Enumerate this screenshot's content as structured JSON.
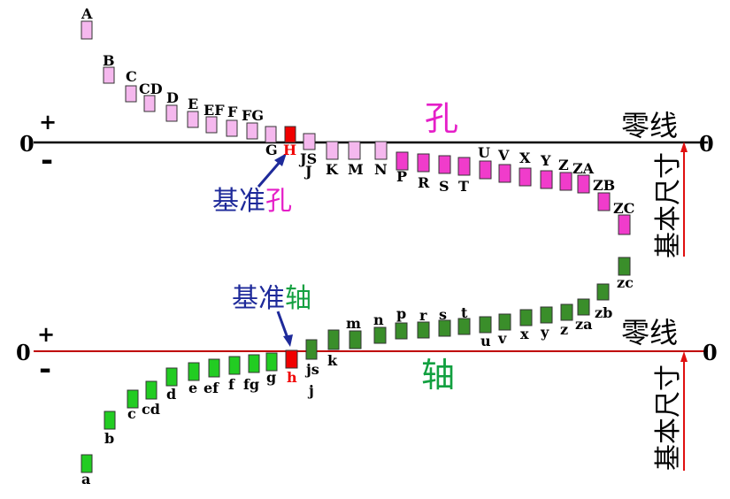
{
  "hole_section": {
    "zero_left": "0",
    "zero_right": "0",
    "plus": "+",
    "minus": "-",
    "title": "孔",
    "zero_line_label": "零线",
    "basic_size_label": "基本尺寸",
    "reference_label_prefix": "基准",
    "reference_label_suffix": "孔",
    "boxes": [
      {
        "label": "A",
        "state": "upper"
      },
      {
        "label": "B",
        "state": "upper"
      },
      {
        "label": "C",
        "state": "upper"
      },
      {
        "label": "CD",
        "state": "upper"
      },
      {
        "label": "D",
        "state": "upper"
      },
      {
        "label": "E",
        "state": "upper"
      },
      {
        "label": "EF",
        "state": "upper"
      },
      {
        "label": "F",
        "state": "upper"
      },
      {
        "label": "FG",
        "state": "upper"
      },
      {
        "label": "G",
        "state": "upper"
      },
      {
        "label": "H",
        "state": "reference"
      },
      {
        "label": "JS",
        "state": "symmetric"
      },
      {
        "label": "J",
        "state": "straddle"
      },
      {
        "label": "K",
        "state": "straddle"
      },
      {
        "label": "M",
        "state": "straddle"
      },
      {
        "label": "N",
        "state": "straddle"
      },
      {
        "label": "P",
        "state": "lower"
      },
      {
        "label": "R",
        "state": "lower"
      },
      {
        "label": "S",
        "state": "lower"
      },
      {
        "label": "T",
        "state": "lower"
      },
      {
        "label": "U",
        "state": "lower"
      },
      {
        "label": "V",
        "state": "lower"
      },
      {
        "label": "X",
        "state": "lower"
      },
      {
        "label": "Y",
        "state": "lower"
      },
      {
        "label": "Z",
        "state": "lower"
      },
      {
        "label": "ZA",
        "state": "lower"
      },
      {
        "label": "ZB",
        "state": "lower"
      },
      {
        "label": "ZC",
        "state": "lower"
      }
    ]
  },
  "shaft_section": {
    "zero_left": "0",
    "zero_right": "0",
    "plus": "+",
    "minus": "-",
    "title": "轴",
    "zero_line_label": "零线",
    "basic_size_label": "基本尺寸",
    "reference_label_prefix": "基准",
    "reference_label_suffix": "轴",
    "boxes": [
      {
        "label": "a",
        "state": "lower"
      },
      {
        "label": "b",
        "state": "lower"
      },
      {
        "label": "c",
        "state": "lower"
      },
      {
        "label": "cd",
        "state": "lower"
      },
      {
        "label": "d",
        "state": "lower"
      },
      {
        "label": "e",
        "state": "lower"
      },
      {
        "label": "ef",
        "state": "lower"
      },
      {
        "label": "f",
        "state": "lower"
      },
      {
        "label": "fg",
        "state": "lower"
      },
      {
        "label": "g",
        "state": "lower"
      },
      {
        "label": "h",
        "state": "reference"
      },
      {
        "label": "js",
        "state": "symmetric"
      },
      {
        "label": "j",
        "state": "straddle"
      },
      {
        "label": "k",
        "state": "straddle"
      },
      {
        "label": "m",
        "state": "upper"
      },
      {
        "label": "n",
        "state": "upper"
      },
      {
        "label": "p",
        "state": "upper"
      },
      {
        "label": "r",
        "state": "upper"
      },
      {
        "label": "s",
        "state": "upper"
      },
      {
        "label": "t",
        "state": "upper"
      },
      {
        "label": "u",
        "state": "upper"
      },
      {
        "label": "v",
        "state": "upper"
      },
      {
        "label": "x",
        "state": "upper"
      },
      {
        "label": "y",
        "state": "upper"
      },
      {
        "label": "z",
        "state": "upper"
      },
      {
        "label": "za",
        "state": "upper"
      },
      {
        "label": "zb",
        "state": "upper"
      },
      {
        "label": "zc",
        "state": "upper"
      }
    ]
  },
  "colors": {
    "hole_light": "#F5B8EE",
    "hole_main": "#F03CCB",
    "reference": "#F00000",
    "shaft_light": "#22CC22",
    "shaft_dark": "#3A8E2A",
    "title_hole": "#E51FC8",
    "title_shaft": "#12A040",
    "reference_label": "#1E2A9A",
    "basic_arrow": "#E01010",
    "shaft_line": "#C00000",
    "hole_line": "#000000"
  }
}
